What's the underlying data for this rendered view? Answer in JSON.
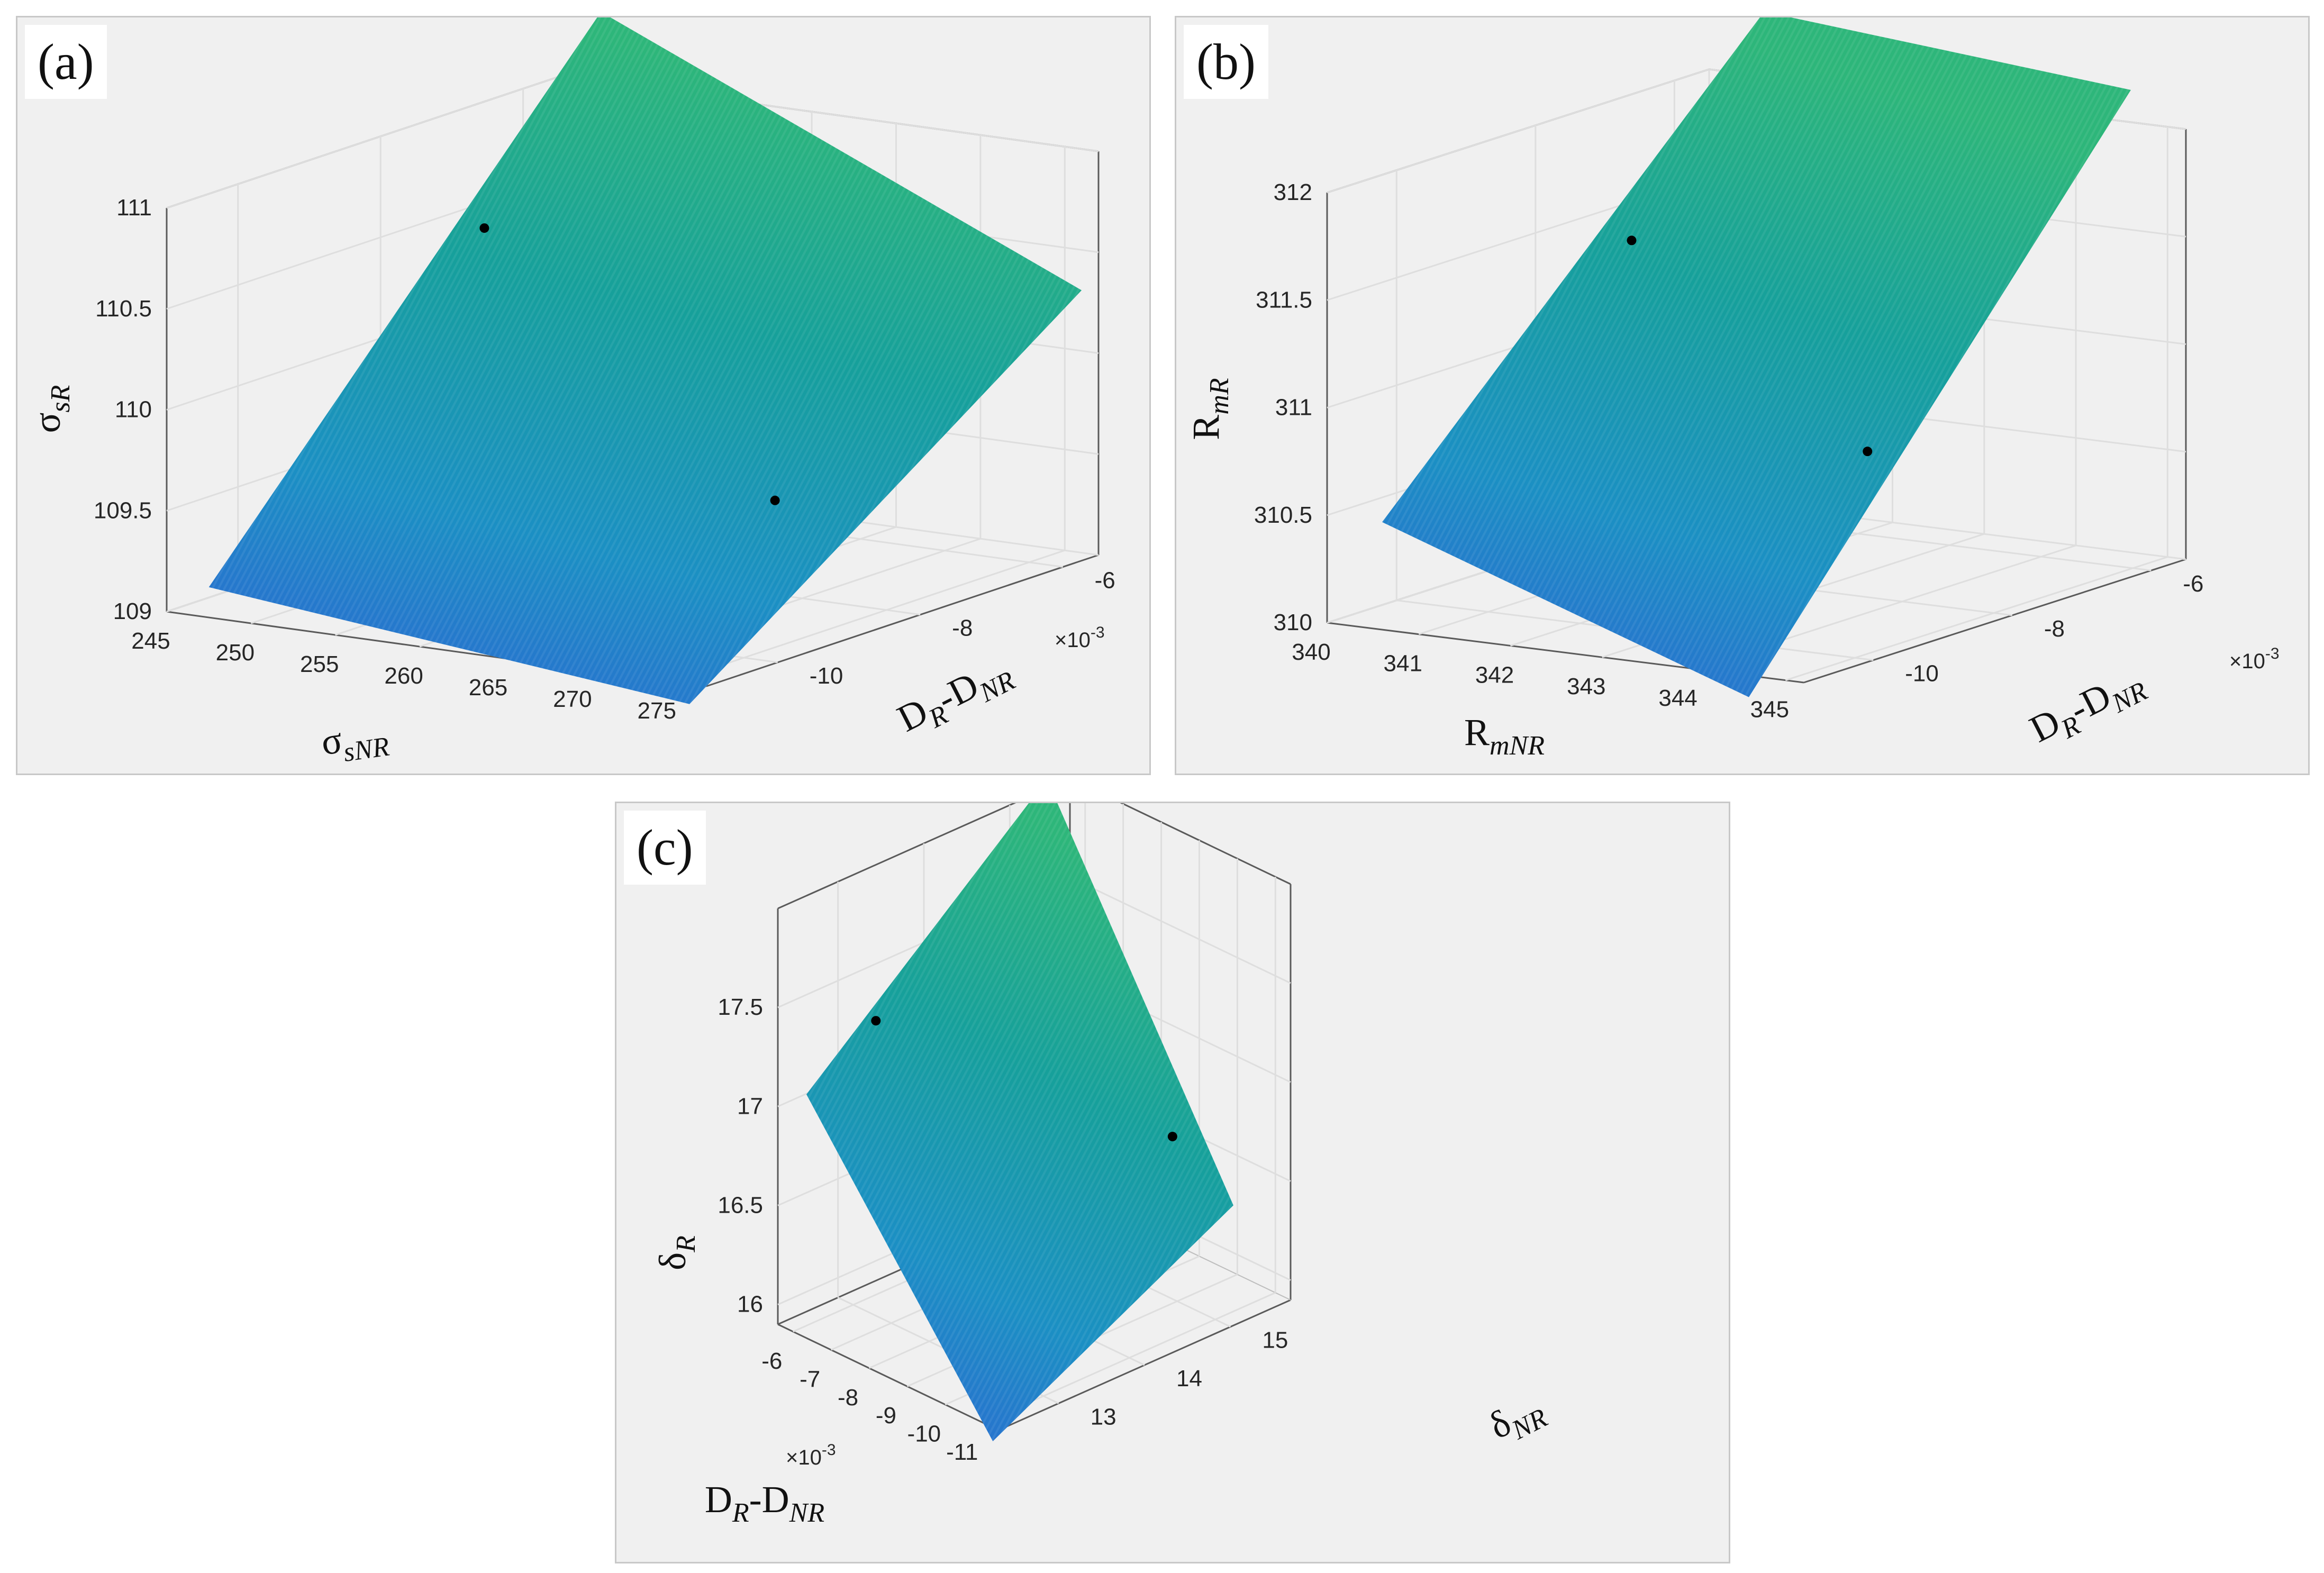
{
  "chart_data": [
    {
      "type": "surface",
      "panel_label": "(a)",
      "x": {
        "label_main": "σ",
        "label_sub": "sNR",
        "ticks": [
          "245",
          "250",
          "255",
          "260",
          "265",
          "270",
          "275"
        ],
        "range": [
          245,
          277
        ]
      },
      "y": {
        "label_main": "D",
        "label_sub1": "R",
        "label_mid": "-D",
        "label_sub2": "NR",
        "ticks": [
          "-10",
          "-8",
          "-6"
        ],
        "range": [
          -11,
          -5.5
        ],
        "exponent": "×10",
        "exponent_power": "-3"
      },
      "z": {
        "label_main": "σ",
        "label_sub": "sR",
        "ticks": [
          "109",
          "109.5",
          "110",
          "110.5",
          "111"
        ],
        "range": [
          109,
          111
        ]
      },
      "surface_corners": [
        [
          247.5,
          -11,
          109.15
        ],
        [
          247.5,
          -5.5,
          111.35
        ],
        [
          276,
          -5.5,
          110.3
        ],
        [
          276,
          -11,
          108.9
        ]
      ],
      "markers": [
        [
          252,
          -8.2,
          110.65
        ],
        [
          270.5,
          -8.5,
          109.55
        ]
      ],
      "colormap": [
        "#2f62d4",
        "#1b8fc4",
        "#16a09b",
        "#2db67a"
      ]
    },
    {
      "type": "surface",
      "panel_label": "(b)",
      "x": {
        "label_main": "R",
        "label_sub": "mNR",
        "ticks": [
          "340",
          "341",
          "342",
          "343",
          "344",
          "345"
        ],
        "range": [
          340,
          345.2
        ]
      },
      "y": {
        "label_main": "D",
        "label_sub1": "R",
        "label_mid": "-D",
        "label_sub2": "NR",
        "ticks": [
          "-10",
          "-8",
          "-6"
        ],
        "range": [
          -11,
          -5.5
        ],
        "exponent": "×10",
        "exponent_power": "-3"
      },
      "z": {
        "label_main": "R",
        "label_sub": "mR",
        "ticks": [
          "310",
          "310.5",
          "311",
          "311.5",
          "312"
        ],
        "range": [
          310,
          312
        ]
      },
      "surface_corners": [
        [
          340.6,
          -11,
          310.5
        ],
        [
          340.6,
          -5.5,
          312.3
        ],
        [
          344.6,
          -5.5,
          312.15
        ],
        [
          344.6,
          -11,
          309.9
        ]
      ],
      "markers": [
        [
          341.2,
          -8.2,
          311.55
        ],
        [
          344,
          -8.5,
          310.75
        ]
      ],
      "colormap": [
        "#2f62d4",
        "#1b8fc4",
        "#16a09b",
        "#2db67a"
      ]
    },
    {
      "type": "surface",
      "panel_label": "(c)",
      "x": {
        "label_main": "D",
        "label_sub1": "R",
        "label_mid": "-D",
        "label_sub2": "NR",
        "ticks": [
          "-6",
          "-7",
          "-8",
          "-9",
          "-10",
          "-11"
        ],
        "range": [
          -5.6,
          -11.4
        ],
        "exponent": "×10",
        "exponent_power": "-3"
      },
      "y": {
        "label_main": "δ",
        "label_sub": "NR",
        "ticks": [
          "13",
          "14",
          "15"
        ],
        "range": [
          12.3,
          15.7
        ]
      },
      "z": {
        "label_main": "δ",
        "label_sub": "R",
        "ticks": [
          "16",
          "16.5",
          "17",
          "17.5"
        ],
        "range": [
          15.9,
          18
        ]
      },
      "surface_corners": [
        [
          -10.8,
          12.5,
          15.75
        ],
        [
          -5.9,
          12.5,
          17.05
        ],
        [
          -5.9,
          15.3,
          18.1
        ],
        [
          -10.8,
          15.3,
          16.4
        ]
      ],
      "markers": [
        [
          -7.5,
          12.6,
          17.55
        ],
        [
          -9.2,
          15.3,
          16.6
        ]
      ],
      "colormap": [
        "#2f62d4",
        "#1b8fc4",
        "#16a09b",
        "#2db67a"
      ]
    }
  ]
}
